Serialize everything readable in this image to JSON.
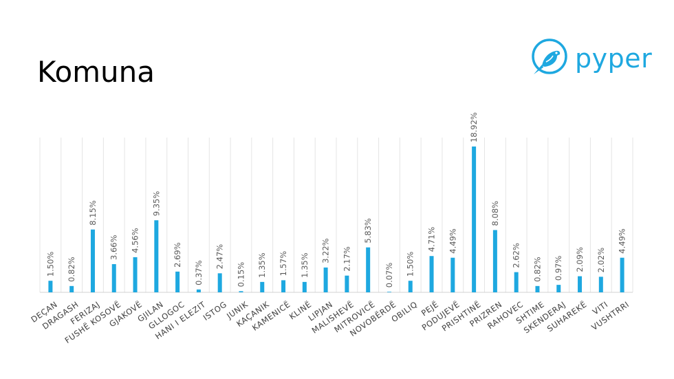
{
  "slide": {
    "title": "Komuna"
  },
  "logo": {
    "text": "pyper",
    "icon": "bird-icon",
    "color": "#1ea8e0"
  },
  "chart_data": {
    "type": "bar",
    "categories": [
      "DEÇAN",
      "DRAGASH",
      "FERIZAJ",
      "FUSHË KOSOVË",
      "GJAKOVË",
      "GJILAN",
      "GLLOGOC",
      "HANI I ELEZIT",
      "ISTOG",
      "JUNIK",
      "KAÇANIK",
      "KAMENICË",
      "KLINË",
      "LIPJAN",
      "MALISHEVË",
      "MITROVICË",
      "NOVOBËRDË",
      "OBILIQ",
      "PEJË",
      "PODUJEVË",
      "PRISHTINË",
      "PRIZREN",
      "RAHOVEC",
      "SHTIME",
      "SKENDERAJ",
      "SUHAREKË",
      "VITI",
      "VUSHTRRI"
    ],
    "values": [
      1.5,
      0.82,
      8.15,
      3.66,
      4.56,
      9.35,
      2.69,
      0.37,
      2.47,
      0.15,
      1.35,
      1.57,
      1.35,
      3.22,
      2.17,
      5.83,
      0.07,
      1.5,
      4.71,
      4.49,
      18.92,
      8.08,
      2.62,
      0.82,
      0.97,
      2.09,
      2.02,
      4.49
    ],
    "labels": [
      "1.50%",
      "0.82%",
      "8.15%",
      "3.66%",
      "4.56%",
      "9.35%",
      "2.69%",
      "0.37%",
      "2.47%",
      "0.15%",
      "1.35%",
      "1.57%",
      "1.35%",
      "3.22%",
      "2.17%",
      "5.83%",
      "0.07%",
      "1.50%",
      "4.71%",
      "4.49%",
      "18.92%",
      "8.08%",
      "2.62%",
      "0.82%",
      "0.97%",
      "2.09%",
      "2.02%",
      "4.49%"
    ],
    "title": "",
    "xlabel": "",
    "ylabel": "",
    "ylim": [
      0,
      20
    ],
    "grid": "vertical",
    "bar_color": "#1ea8e0"
  }
}
